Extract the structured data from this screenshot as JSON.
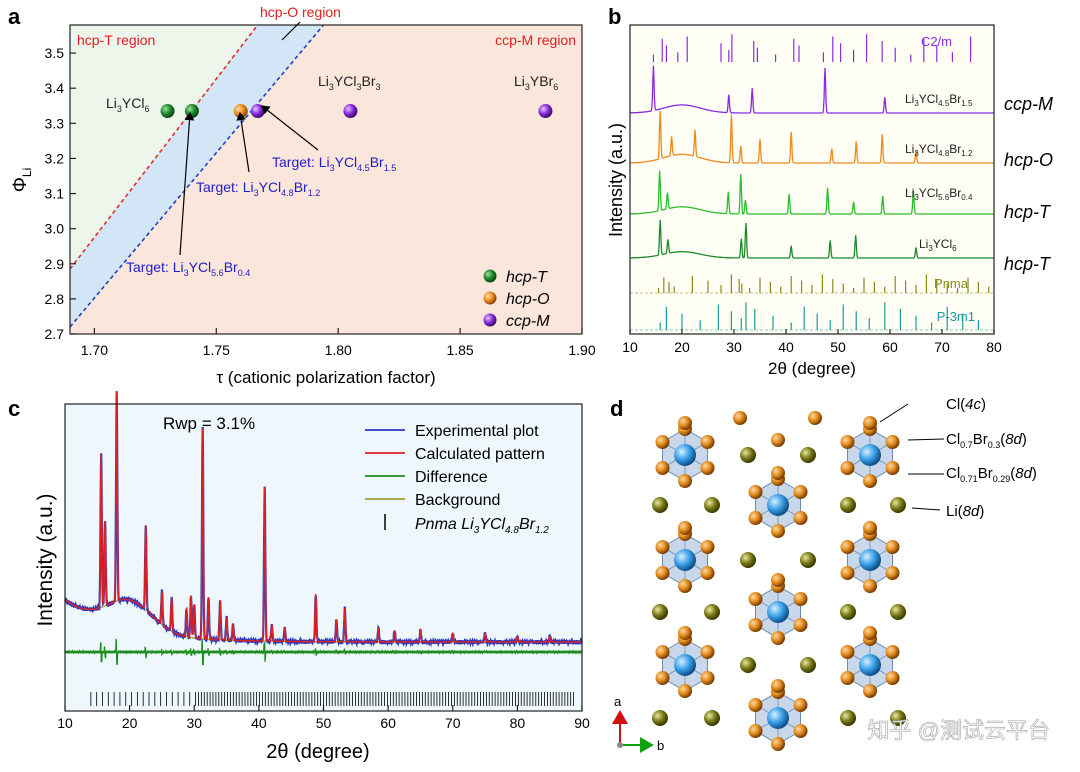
{
  "panels": {
    "a": "a",
    "b": "b",
    "c": "c",
    "d": "d"
  },
  "chart_data": [
    {
      "panel": "a",
      "type": "scatter",
      "xlabel": "τ (cationic polarization factor)",
      "ylabel_main": "Φ",
      "ylabel_sub": "Li",
      "xlim": [
        1.69,
        1.9
      ],
      "ylim": [
        2.7,
        3.58
      ],
      "xticks": [
        "1.70",
        "1.75",
        "1.80",
        "1.85",
        "1.90"
      ],
      "xtick_values": [
        1.7,
        1.75,
        1.8,
        1.85,
        1.9
      ],
      "yticks": [
        "2.7",
        "2.8",
        "2.9",
        "3.0",
        "3.1",
        "3.2",
        "3.3",
        "3.4",
        "3.5"
      ],
      "ytick_values": [
        2.7,
        2.8,
        2.9,
        3.0,
        3.1,
        3.2,
        3.3,
        3.4,
        3.5
      ],
      "regions": {
        "hcp_t": "hcp-T region",
        "hcp_o": "hcp-O region",
        "ccp_m": "ccp-M region"
      },
      "boundaries": [
        {
          "name": "hcp-T / hcp-O boundary",
          "x": [
            1.69,
            1.767
          ],
          "y": [
            2.885,
            3.58
          ],
          "color": "#e03030"
        },
        {
          "name": "hcp-O / ccp-M boundary",
          "x": [
            1.69,
            1.794
          ],
          "y": [
            2.72,
            3.58
          ],
          "color": "#2040c0"
        }
      ],
      "points": [
        {
          "label": "Li3YCl6",
          "x": 1.73,
          "y": 3.335,
          "phase": "hcp-T",
          "color": "#1f8a2c"
        },
        {
          "label": "Li3YCl5.6Br0.4",
          "x": 1.74,
          "y": 3.335,
          "phase": "hcp-T",
          "color": "#1f8a2c"
        },
        {
          "label": "Li3YCl4.8Br1.2",
          "x": 1.76,
          "y": 3.335,
          "phase": "hcp-O",
          "color": "#f08a1c"
        },
        {
          "label": "Li3YCl4.5Br1.5",
          "x": 1.767,
          "y": 3.335,
          "phase": "ccp-M",
          "color": "#8a2be2"
        },
        {
          "label": "Li3YCl3Br3",
          "x": 1.805,
          "y": 3.335,
          "phase": "ccp-M",
          "color": "#8a2be2"
        },
        {
          "label": "Li3YBr6",
          "x": 1.885,
          "y": 3.335,
          "phase": "ccp-M",
          "color": "#8a2be2"
        }
      ],
      "point_labels": {
        "li3ycl6": {
          "main": "Li",
          "s1": "3",
          "mid": "YCl",
          "s2": "6"
        },
        "li3ycl3br3": {
          "main": "Li",
          "s1": "3",
          "mid": "YCl",
          "s2": "3",
          "end": "Br",
          "s3": "3"
        },
        "li3ybr6": {
          "main": "Li",
          "s1": "3",
          "mid": "YBr",
          "s2": "6"
        }
      },
      "targets": [
        {
          "prefix": "Target: Li",
          "s1": "3",
          "mid": "YCl",
          "s2": "4.5",
          "end": "Br",
          "s3": "1.5"
        },
        {
          "prefix": "Target: Li",
          "s1": "3",
          "mid": "YCl",
          "s2": "4.8",
          "end": "Br",
          "s3": "1.2"
        },
        {
          "prefix": "Target: Li",
          "s1": "3",
          "mid": "YCl",
          "s2": "5.6",
          "end": "Br",
          "s3": "0.4"
        }
      ],
      "legend": [
        {
          "label": "hcp-T",
          "color": "#1f8a2c"
        },
        {
          "label": "hcp-O",
          "color": "#f08a1c"
        },
        {
          "label": "ccp-M",
          "color": "#8a2be2"
        }
      ],
      "colors": {
        "hcp_t_bg": "#eef6ec",
        "hcp_o_bg": "#d3e6f8",
        "ccp_m_bg": "#fbe6dc"
      }
    },
    {
      "panel": "b",
      "type": "line",
      "xlabel": "2θ (degree)",
      "ylabel": "Intensity (a.u.)",
      "xlim": [
        10,
        80
      ],
      "xticks": [
        "10",
        "20",
        "30",
        "40",
        "50",
        "60",
        "70",
        "80"
      ],
      "xtick_values": [
        10,
        20,
        30,
        40,
        50,
        60,
        70,
        80
      ],
      "series": [
        {
          "name": "C2/m",
          "kind": "reference",
          "color": "#8a2be2",
          "peaks": [
            14.5,
            16.2,
            17.0,
            19.2,
            21.0,
            27.5,
            29.0,
            29.6,
            33.8,
            34.5,
            38.0,
            41.5,
            42.5,
            47.2,
            49.0,
            50.5,
            53.0,
            55.5,
            58.5,
            61.0,
            64.0,
            66.5,
            69.0,
            72.0,
            75.5
          ]
        },
        {
          "name": "Li3YCl4.5Br1.5",
          "phase": "ccp-M",
          "color": "#8a2be2",
          "peaks": [
            14.5,
            29.0,
            33.5,
            47.5,
            59.0
          ]
        },
        {
          "name": "Li3YCl4.8Br1.2",
          "phase": "hcp-O",
          "color": "#f08a1c",
          "peaks": [
            15.8,
            18.0,
            22.5,
            29.5,
            31.3,
            35.0,
            41.0,
            48.8,
            53.5,
            58.5,
            65.0
          ]
        },
        {
          "name": "Li3YCl5.6Br0.4",
          "phase": "hcp-T",
          "color": "#2cbf2c",
          "peaks": [
            15.7,
            17.2,
            28.9,
            31.3,
            32.2,
            40.6,
            48.0,
            53.0,
            58.6,
            64.5
          ]
        },
        {
          "name": "Li3YCl6",
          "phase": "hcp-T",
          "color": "#1f8a2c",
          "peaks": [
            15.8,
            17.3,
            31.4,
            32.3,
            41.0,
            48.5,
            53.4,
            65.0
          ]
        },
        {
          "name": "Pnma",
          "kind": "reference",
          "color": "#8a8a1a",
          "peaks": [
            15.5,
            16.5,
            17.5,
            18.5,
            22.0,
            25.0,
            27.5,
            29.5,
            31.0,
            31.5,
            33.0,
            35.0,
            37.0,
            39.0,
            41.0,
            43.0,
            45.0,
            47.0,
            49.0,
            51.0,
            53.0,
            55.0,
            57.0,
            59.0,
            61.0,
            63.0,
            65.0,
            67.0,
            69.0,
            71.0,
            73.0,
            75.0,
            77.0,
            79.0
          ]
        },
        {
          "name": "P-3m1",
          "kind": "reference",
          "color": "#1a9a9a",
          "peaks": [
            15.8,
            17.0,
            20.0,
            23.5,
            27.0,
            29.5,
            31.4,
            32.3,
            34.0,
            37.5,
            41.0,
            43.5,
            46.0,
            48.5,
            51.0,
            53.5,
            56.0,
            59.0,
            62.0,
            65.0,
            68.0,
            71.0,
            74.0,
            77.0
          ]
        }
      ],
      "formula_labels": [
        {
          "main": "Li",
          "s1": "3",
          "mid": "YCl",
          "s2": "4.5",
          "end": "Br",
          "s3": "1.5",
          "phase": "ccp-M"
        },
        {
          "main": "Li",
          "s1": "3",
          "mid": "YCl",
          "s2": "4.8",
          "end": "Br",
          "s3": "1.2",
          "phase": "hcp-O"
        },
        {
          "main": "Li",
          "s1": "3",
          "mid": "YCl",
          "s2": "5.6",
          "end": "Br",
          "s3": "0.4",
          "phase": "hcp-T"
        },
        {
          "main": "Li",
          "s1": "3",
          "mid": "YCl",
          "s2": "6",
          "end": "",
          "s3": "",
          "phase": "hcp-T"
        }
      ],
      "ref_labels": {
        "c2m": "C2/m",
        "pnma": "Pnma",
        "p3m1": "P-3m1"
      }
    },
    {
      "panel": "c",
      "type": "line",
      "title": "Rwp = 3.1%",
      "xlabel": "2θ (degree)",
      "ylabel": "Intensity (a.u.)",
      "xlim": [
        10,
        90
      ],
      "xticks": [
        "10",
        "20",
        "30",
        "40",
        "50",
        "60",
        "70",
        "80",
        "90"
      ],
      "xtick_values": [
        10,
        20,
        30,
        40,
        50,
        60,
        70,
        80,
        90
      ],
      "legend": [
        {
          "label": "Experimental plot",
          "color": "#2a3bbf"
        },
        {
          "label": "Calculated pattern",
          "color": "#e02020"
        },
        {
          "label": "Difference",
          "color": "#1e8c1e"
        },
        {
          "label": "Background",
          "color": "#a0a030"
        },
        {
          "label": "Pnma Li3YCl4.8Br1.2",
          "color": "#000000"
        }
      ],
      "legend_pnma": {
        "italic": "Pnma Li",
        "s1": "3",
        "mid": "YCl",
        "s2": "4.8",
        "end": "Br",
        "s3": "1.2"
      },
      "peaks": [
        {
          "x": 15.6,
          "h": 0.55
        },
        {
          "x": 16.2,
          "h": 0.3
        },
        {
          "x": 18.0,
          "h": 0.75
        },
        {
          "x": 22.5,
          "h": 0.3
        },
        {
          "x": 25.0,
          "h": 0.12
        },
        {
          "x": 26.5,
          "h": 0.12
        },
        {
          "x": 28.8,
          "h": 0.1
        },
        {
          "x": 29.5,
          "h": 0.15
        },
        {
          "x": 30.0,
          "h": 0.12
        },
        {
          "x": 31.3,
          "h": 0.75
        },
        {
          "x": 32.2,
          "h": 0.15
        },
        {
          "x": 34.0,
          "h": 0.14
        },
        {
          "x": 35.0,
          "h": 0.08
        },
        {
          "x": 36.0,
          "h": 0.06
        },
        {
          "x": 40.9,
          "h": 0.55
        },
        {
          "x": 42.0,
          "h": 0.06
        },
        {
          "x": 44.0,
          "h": 0.05
        },
        {
          "x": 48.8,
          "h": 0.17
        },
        {
          "x": 52.0,
          "h": 0.08
        },
        {
          "x": 53.3,
          "h": 0.12
        },
        {
          "x": 58.5,
          "h": 0.05
        },
        {
          "x": 61.0,
          "h": 0.04
        },
        {
          "x": 65.0,
          "h": 0.04
        },
        {
          "x": 70.0,
          "h": 0.03
        },
        {
          "x": 75.0,
          "h": 0.03
        },
        {
          "x": 80.0,
          "h": 0.02
        },
        {
          "x": 85.0,
          "h": 0.02
        }
      ]
    }
  ],
  "panel_d": {
    "labels": {
      "cl4c": {
        "main": "Cl(",
        "italic": "4c",
        "end": ")"
      },
      "cl07": {
        "main": "Cl",
        "s1": "0.7",
        "mid": "Br",
        "s2": "0.3",
        "end": "(",
        "italic": "8d",
        "close": ")"
      },
      "cl071": {
        "main": "Cl",
        "s1": "0.71",
        "mid": "Br",
        "s2": "0.29",
        "end": "(",
        "italic": "8d",
        "close": ")"
      },
      "li8d": {
        "main": "Li(",
        "italic": "8d",
        "end": ")"
      }
    },
    "axes": {
      "a": "a",
      "b": "b"
    },
    "colors": {
      "y_atom": "#4aa8ea",
      "cl_atom": "#e08a1c",
      "li_atom": "#7a7a1a",
      "octahedron": "#9ab8d8"
    }
  },
  "watermark": "知乎 @测试云平台"
}
